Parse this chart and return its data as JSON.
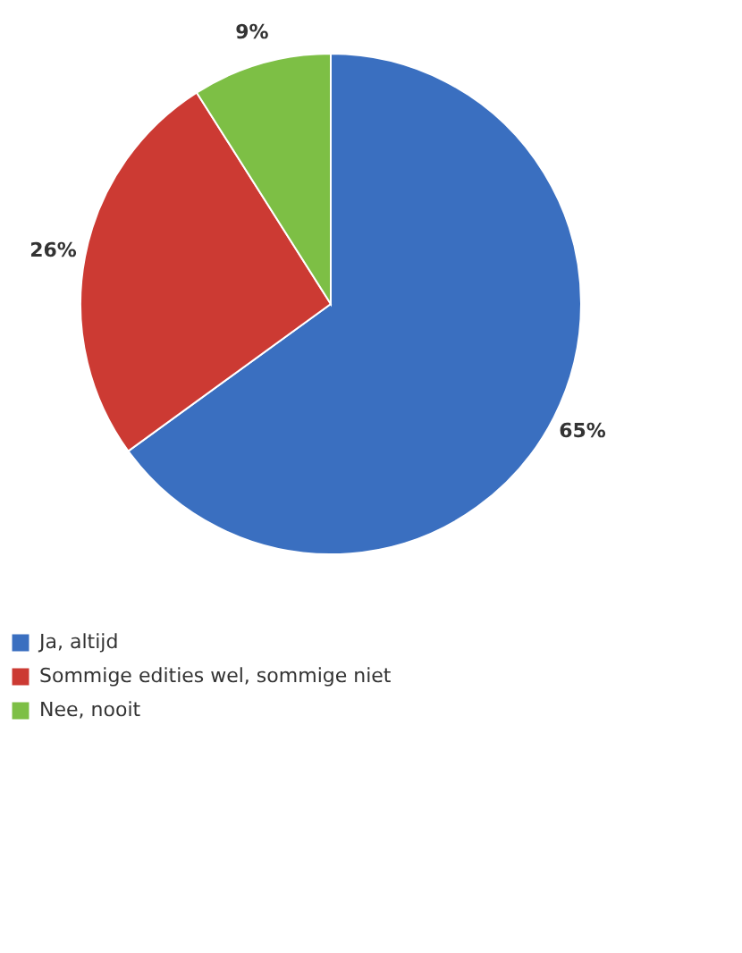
{
  "chart_data": {
    "type": "pie",
    "categories": [
      "Ja, altijd",
      "Sommige edities wel, sommige niet",
      "Nee, nooit"
    ],
    "values": [
      65,
      26,
      9
    ],
    "colors": [
      "#3a6fc0",
      "#cc3a33",
      "#7dbf45"
    ],
    "value_labels": [
      "65%",
      "26%",
      "9%"
    ],
    "legend": "bottom"
  }
}
